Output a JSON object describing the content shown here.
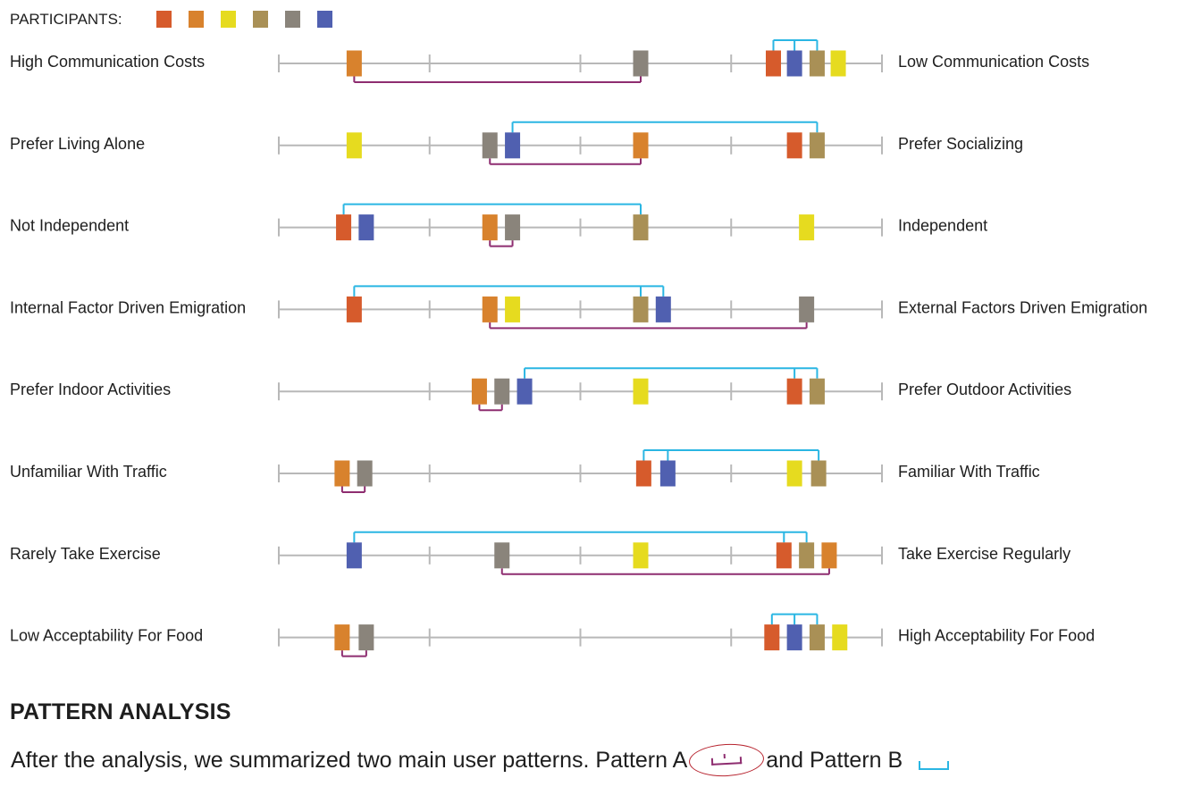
{
  "legend": {
    "title": "PARTICIPANTS:",
    "participants": [
      {
        "id": "p1",
        "color": "#d65b2c"
      },
      {
        "id": "p2",
        "color": "#d8822d"
      },
      {
        "id": "p3",
        "color": "#e6db1f"
      },
      {
        "id": "p4",
        "color": "#a99056"
      },
      {
        "id": "p5",
        "color": "#8a847b"
      },
      {
        "id": "p6",
        "color": "#5060b0"
      }
    ]
  },
  "bracket_colors": {
    "pattern_a": "#8e2d70",
    "pattern_b": "#2ab6e3"
  },
  "scale": {
    "min": 0,
    "max": 4,
    "ticks": [
      0,
      1,
      2,
      3,
      4
    ]
  },
  "rows": [
    {
      "left": "High Communication Costs",
      "right": "Low Communication Costs",
      "markers": [
        {
          "p": "p2",
          "v": 0.5
        },
        {
          "p": "p5",
          "v": 2.4
        },
        {
          "p": "p1",
          "v": 3.28
        },
        {
          "p": "p6",
          "v": 3.42
        },
        {
          "p": "p4",
          "v": 3.57
        },
        {
          "p": "p3",
          "v": 3.71
        }
      ],
      "pattern_a": [
        "p2",
        "p5"
      ],
      "pattern_b": [
        "p1",
        "p6",
        "p4"
      ]
    },
    {
      "left": "Prefer Living Alone",
      "right": "Prefer Socializing",
      "markers": [
        {
          "p": "p3",
          "v": 0.5
        },
        {
          "p": "p5",
          "v": 1.4
        },
        {
          "p": "p6",
          "v": 1.55
        },
        {
          "p": "p2",
          "v": 2.4
        },
        {
          "p": "p1",
          "v": 3.42
        },
        {
          "p": "p4",
          "v": 3.57
        }
      ],
      "pattern_a": [
        "p5",
        "p2"
      ],
      "pattern_b": [
        "p6",
        "p4"
      ]
    },
    {
      "left": "Not Independent",
      "right": "Independent",
      "markers": [
        {
          "p": "p1",
          "v": 0.43
        },
        {
          "p": "p6",
          "v": 0.58
        },
        {
          "p": "p2",
          "v": 1.4
        },
        {
          "p": "p5",
          "v": 1.55
        },
        {
          "p": "p4",
          "v": 2.4
        },
        {
          "p": "p3",
          "v": 3.5
        }
      ],
      "pattern_a": [
        "p2",
        "p5"
      ],
      "pattern_b": [
        "p1",
        "p4"
      ]
    },
    {
      "left": "Internal Factor Driven Emigration",
      "right": "External Factors Driven Emigration",
      "markers": [
        {
          "p": "p1",
          "v": 0.5
        },
        {
          "p": "p2",
          "v": 1.4
        },
        {
          "p": "p3",
          "v": 1.55
        },
        {
          "p": "p4",
          "v": 2.4
        },
        {
          "p": "p6",
          "v": 2.55
        },
        {
          "p": "p5",
          "v": 3.5
        }
      ],
      "pattern_a": [
        "p2",
        "p5"
      ],
      "pattern_b": [
        "p1",
        "p4",
        "p6"
      ]
    },
    {
      "left": "Prefer Indoor Activities",
      "right": "Prefer Outdoor Activities",
      "markers": [
        {
          "p": "p2",
          "v": 1.33
        },
        {
          "p": "p5",
          "v": 1.48
        },
        {
          "p": "p6",
          "v": 1.63
        },
        {
          "p": "p3",
          "v": 2.4
        },
        {
          "p": "p1",
          "v": 3.42
        },
        {
          "p": "p4",
          "v": 3.57
        }
      ],
      "pattern_a": [
        "p2",
        "p5"
      ],
      "pattern_b": [
        "p6",
        "p1",
        "p4"
      ]
    },
    {
      "left": "Unfamiliar With Traffic",
      "right": "Familiar With Traffic",
      "markers": [
        {
          "p": "p2",
          "v": 0.42
        },
        {
          "p": "p5",
          "v": 0.57
        },
        {
          "p": "p1",
          "v": 2.42
        },
        {
          "p": "p6",
          "v": 2.58
        },
        {
          "p": "p3",
          "v": 3.42
        },
        {
          "p": "p4",
          "v": 3.58
        }
      ],
      "pattern_a": [
        "p2",
        "p5"
      ],
      "pattern_b": [
        "p1",
        "p6",
        "p4"
      ]
    },
    {
      "left": "Rarely Take Exercise",
      "right": "Take Exercise Regularly",
      "markers": [
        {
          "p": "p6",
          "v": 0.5
        },
        {
          "p": "p5",
          "v": 1.48
        },
        {
          "p": "p3",
          "v": 2.4
        },
        {
          "p": "p1",
          "v": 3.35
        },
        {
          "p": "p4",
          "v": 3.5
        },
        {
          "p": "p2",
          "v": 3.65
        }
      ],
      "pattern_a": [
        "p5",
        "p2"
      ],
      "pattern_b": [
        "p6",
        "p1",
        "p4"
      ]
    },
    {
      "left": "Low Acceptability For Food",
      "right": "High Acceptability For Food",
      "markers": [
        {
          "p": "p2",
          "v": 0.42
        },
        {
          "p": "p5",
          "v": 0.58
        },
        {
          "p": "p1",
          "v": 3.27
        },
        {
          "p": "p6",
          "v": 3.42
        },
        {
          "p": "p4",
          "v": 3.57
        },
        {
          "p": "p3",
          "v": 3.72
        }
      ],
      "pattern_a": [
        "p2",
        "p5"
      ],
      "pattern_b": [
        "p1",
        "p6",
        "p4"
      ]
    }
  ],
  "section": {
    "heading": "PATTERN ANALYSIS",
    "text_before": "After the analysis, we summarized two main user patterns. Pattern A",
    "text_middle": "and Pattern B"
  }
}
